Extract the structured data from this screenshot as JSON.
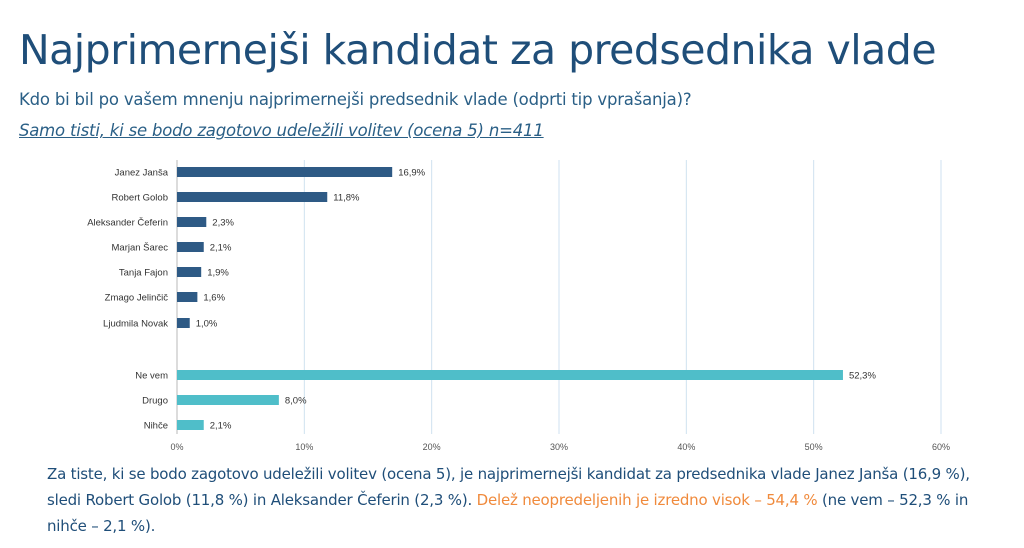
{
  "header": {
    "title": "Najprimernejši kandidat za predsednika vlade",
    "subtitle": "Kdo bi bil po vašem mnenju najprimernejši predsednik vlade (odprti tip vprašanja)?",
    "sample": "Samo tisti, ki se bodo zagotovo udeležili volitev (ocena 5) n=411"
  },
  "colors": {
    "candidate_bar": "#2e5a85",
    "other_bar": "#4fbec9",
    "grid": "#cfe2f0"
  },
  "chart_data": {
    "type": "bar",
    "orientation": "horizontal",
    "categories": [
      "Janez Janša",
      "Robert Golob",
      "Aleksander Čeferin",
      "Marjan Šarec",
      "Tanja Fajon",
      "Zmago Jelinčič",
      "Ljudmila Novak",
      "Ne vem",
      "Drugo",
      "Nihče"
    ],
    "values": [
      16.9,
      11.8,
      2.3,
      2.1,
      1.9,
      1.6,
      1.0,
      52.3,
      8.0,
      2.1
    ],
    "value_labels": [
      "16,9%",
      "11,8%",
      "2,3%",
      "2,1%",
      "1,9%",
      "1,6%",
      "1,0%",
      "52,3%",
      "8,0%",
      "2,1%"
    ],
    "groups": [
      "candidate",
      "candidate",
      "candidate",
      "candidate",
      "candidate",
      "candidate",
      "candidate",
      "other",
      "other",
      "other"
    ],
    "xlim": [
      0,
      60
    ],
    "xticks": [
      0,
      10,
      20,
      30,
      40,
      50,
      60
    ],
    "xtick_labels": [
      "0%",
      "10%",
      "20%",
      "30%",
      "40%",
      "50%",
      "60%"
    ],
    "grid": true
  },
  "footer": {
    "text_part1": "Za tiste, ki se bodo zagotovo udeležili volitev (ocena 5), je najprimernejši kandidat za predsednika vlade Janez Janša (16,9 %), sledi Robert Golob (11,8 %) in Aleksander Čeferin (2,3 %). ",
    "text_highlight": "Delež neopredeljenih je izredno visok – 54,4 %",
    "text_part2": " (ne vem – 52,3 % in nihče – 2,1 %)."
  }
}
